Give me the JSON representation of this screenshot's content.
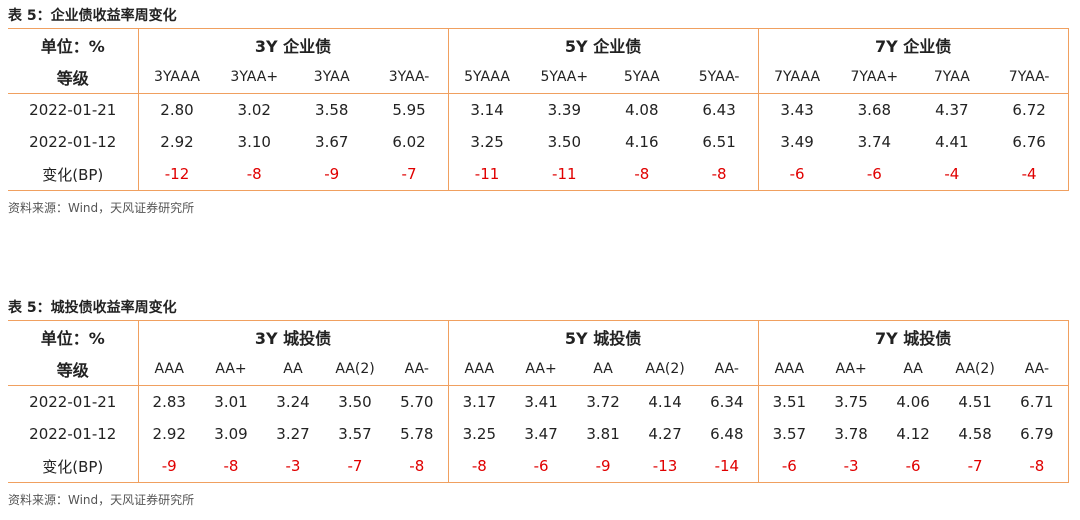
{
  "tables": [
    {
      "title": "表 5：企业债收益率周变化",
      "unit_label": "单位：%",
      "groups": [
        "3Y 企业债",
        "5Y 企业债",
        "7Y 企业债"
      ],
      "grade_label": "等级",
      "grades": [
        "3YAAA",
        "3YAA+",
        "3YAA",
        "3YAA-",
        "5YAAA",
        "5YAA+",
        "5YAA",
        "5YAA-",
        "7YAAA",
        "7YAA+",
        "7YAA",
        "7YAA-"
      ],
      "rows": [
        {
          "label": "2022-01-21",
          "values": [
            "2.80",
            "3.02",
            "3.58",
            "5.95",
            "3.14",
            "3.39",
            "4.08",
            "6.43",
            "3.43",
            "3.68",
            "4.37",
            "6.72"
          ]
        },
        {
          "label": "2022-01-12",
          "values": [
            "2.92",
            "3.10",
            "3.67",
            "6.02",
            "3.25",
            "3.50",
            "4.16",
            "6.51",
            "3.49",
            "3.74",
            "4.41",
            "6.76"
          ]
        },
        {
          "label": "变化(BP)",
          "values": [
            "-12",
            "-8",
            "-9",
            "-7",
            "-11",
            "-11",
            "-8",
            "-8",
            "-6",
            "-6",
            "-4",
            "-4"
          ]
        }
      ],
      "source": "资料来源：Wind，天风证券研究所"
    },
    {
      "title": "表 5：城投债收益率周变化",
      "unit_label": "单位：%",
      "groups": [
        "3Y 城投债",
        "5Y 城投债",
        "7Y 城投债"
      ],
      "grade_label": "等级",
      "grades": [
        "AAA",
        "AA+",
        "AA",
        "AA(2)",
        "AA-",
        "AAA",
        "AA+",
        "AA",
        "AA(2)",
        "AA-",
        "AAA",
        "AA+",
        "AA",
        "AA(2)",
        "AA-"
      ],
      "rows": [
        {
          "label": "2022-01-21",
          "values": [
            "2.83",
            "3.01",
            "3.24",
            "3.50",
            "5.70",
            "3.17",
            "3.41",
            "3.72",
            "4.14",
            "6.34",
            "3.51",
            "3.75",
            "4.06",
            "4.51",
            "6.71"
          ]
        },
        {
          "label": "2022-01-12",
          "values": [
            "2.92",
            "3.09",
            "3.27",
            "3.57",
            "5.78",
            "3.25",
            "3.47",
            "3.81",
            "4.27",
            "6.48",
            "3.57",
            "3.78",
            "4.12",
            "4.58",
            "6.79"
          ]
        },
        {
          "label": "变化(BP)",
          "values": [
            "-9",
            "-8",
            "-3",
            "-7",
            "-8",
            "-8",
            "-6",
            "-9",
            "-13",
            "-14",
            "-6",
            "-3",
            "-6",
            "-7",
            "-8"
          ]
        }
      ],
      "source": "资料来源：Wind，天风证券研究所"
    }
  ]
}
